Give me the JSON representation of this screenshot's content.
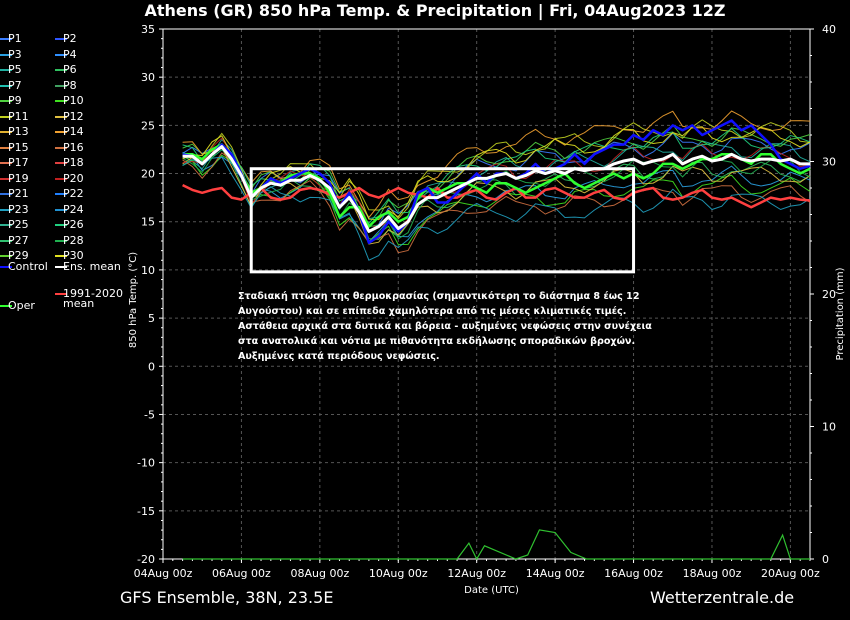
{
  "title": "Athens  (GR)  850 hPa Temp. & Precipitation | Fri, 04Aug2023 12Z",
  "footer": {
    "left": "GFS Ensemble, 38N, 23.5E",
    "right": "Wetterzentrale.de"
  },
  "annotation": "Σταδιακή πτώση της θερμοκρασίας (σημαντικότερη το διάστημα 8 έως 12 Αυγούστου) και σε επίπεδα χαμηλότερα από τις μέσες κλιματικές τιμές. Αστάθεια αρχικά στα δυτικά και βόρεια - αυξημένες νεφώσεις στην συνέχεια στα ανατολικά και νότια με πιθανότητα εκδήλωσης σποραδικών βροχών. Αυξημένες κατά περιόδους νεφώσεις.",
  "legend": [
    {
      "label": "P1",
      "color": "#3a7dff"
    },
    {
      "label": "P2",
      "color": "#2f57ff"
    },
    {
      "label": "P3",
      "color": "#2aa0e0"
    },
    {
      "label": "P4",
      "color": "#3090ff"
    },
    {
      "label": "P5",
      "color": "#20b0a0"
    },
    {
      "label": "P6",
      "color": "#30c060"
    },
    {
      "label": "P7",
      "color": "#20c0b0"
    },
    {
      "label": "P8",
      "color": "#40a060"
    },
    {
      "label": "P9",
      "color": "#50d040"
    },
    {
      "label": "P10",
      "color": "#40e020"
    },
    {
      "label": "P11",
      "color": "#c0d020"
    },
    {
      "label": "P12",
      "color": "#e0c040"
    },
    {
      "label": "P13",
      "color": "#e0b030"
    },
    {
      "label": "P14",
      "color": "#f0a030"
    },
    {
      "label": "P15",
      "color": "#e08040"
    },
    {
      "label": "P16",
      "color": "#d07040"
    },
    {
      "label": "P17",
      "color": "#e07050"
    },
    {
      "label": "P18",
      "color": "#e04040"
    },
    {
      "label": "P19",
      "color": "#d03030"
    },
    {
      "label": "P20",
      "color": "#c02020"
    },
    {
      "label": "P21",
      "color": "#3070e0"
    },
    {
      "label": "P22",
      "color": "#2080ff"
    },
    {
      "label": "P23",
      "color": "#20a0c0"
    },
    {
      "label": "P24",
      "color": "#2090d0"
    },
    {
      "label": "P25",
      "color": "#30b090"
    },
    {
      "label": "P26",
      "color": "#20d080"
    },
    {
      "label": "P27",
      "color": "#30c070"
    },
    {
      "label": "P28",
      "color": "#20b050"
    },
    {
      "label": "P29",
      "color": "#60d030"
    },
    {
      "label": "P30",
      "color": "#e0e020"
    },
    {
      "label": "Control",
      "color": "#1010ff"
    },
    {
      "label": "Ens. mean",
      "color": "#ffffff"
    },
    {
      "label": "1991-2020 mean",
      "color": "#ff4040"
    },
    {
      "label": "Oper",
      "color": "#30ff30"
    }
  ],
  "chart_data": {
    "type": "line",
    "title": "Athens  (GR)  850 hPa Temp. & Precipitation | Fri, 04Aug2023 12Z",
    "xlabel": "Date (UTC)",
    "ylabel": "850 hPa Temp. (°C)",
    "y2label": "Precipitation (mm)",
    "x_ticks": [
      "04Aug 00z",
      "06Aug 00z",
      "08Aug 00z",
      "10Aug 00z",
      "12Aug 00z",
      "14Aug 00z",
      "16Aug 00z",
      "18Aug 00z",
      "20Aug 00z"
    ],
    "x_range_days": [
      4,
      20.5
    ],
    "ylim": [
      -20,
      35
    ],
    "y_ticks": [
      35,
      30,
      25,
      20,
      15,
      10,
      5,
      0,
      -5,
      -10,
      -15,
      -20
    ],
    "y2lim": [
      0,
      40
    ],
    "y2_ticks": [
      40,
      30,
      20,
      10,
      0
    ],
    "grid": true,
    "series": [
      {
        "name": "Control",
        "color": "#1010ff",
        "width": 2.5,
        "x": [
          4.5,
          4.75,
          5,
          5.25,
          5.5,
          5.75,
          6,
          6.25,
          6.5,
          6.75,
          7,
          7.25,
          7.5,
          7.75,
          8,
          8.25,
          8.5,
          8.75,
          9,
          9.25,
          9.5,
          9.75,
          10,
          10.25,
          10.5,
          10.75,
          11,
          11.25,
          11.5,
          11.75,
          12,
          12.25,
          12.5,
          12.75,
          13,
          13.25,
          13.5,
          13.75,
          14,
          14.25,
          14.5,
          14.75,
          15,
          15.25,
          15.5,
          15.75,
          16,
          16.25,
          16.5,
          16.75,
          17,
          17.25,
          17.5,
          17.75,
          18,
          18.25,
          18.5,
          18.75,
          19,
          19.25,
          19.5,
          19.75,
          20,
          20.25,
          20.5
        ],
        "y": [
          22,
          21.8,
          21,
          22,
          23,
          22,
          20,
          17.5,
          18.5,
          19.5,
          19,
          19.5,
          20,
          20.5,
          20,
          19,
          16.5,
          18,
          16,
          12.8,
          13.5,
          15,
          14,
          15,
          18,
          18.5,
          17,
          17,
          18,
          19,
          20,
          19,
          20,
          20,
          19.5,
          20,
          21,
          20,
          20.5,
          21,
          22,
          21,
          22,
          22.5,
          23,
          23,
          24,
          23.5,
          24.5,
          24,
          25,
          24.5,
          25,
          24,
          24.5,
          25,
          25.5,
          24.5,
          25,
          24,
          23,
          21.5,
          21,
          20.5,
          20.8
        ]
      },
      {
        "name": "Ens. mean",
        "color": "#ffffff",
        "width": 3,
        "x": [
          4.5,
          4.75,
          5,
          5.25,
          5.5,
          5.75,
          6,
          6.25,
          6.5,
          6.75,
          7,
          7.25,
          7.5,
          7.75,
          8,
          8.25,
          8.5,
          8.75,
          9,
          9.25,
          9.5,
          9.75,
          10,
          10.25,
          10.5,
          10.75,
          11,
          11.25,
          11.5,
          11.75,
          12,
          12.25,
          12.5,
          12.75,
          13,
          13.25,
          13.5,
          13.75,
          14,
          14.25,
          14.5,
          14.75,
          15,
          15.25,
          15.5,
          15.75,
          16,
          16.25,
          16.5,
          16.75,
          17,
          17.25,
          17.5,
          17.75,
          18,
          18.25,
          18.5,
          18.75,
          19,
          19.25,
          19.5,
          19.75,
          20,
          20.25,
          20.5
        ],
        "y": [
          21.8,
          21.8,
          21,
          22,
          22.8,
          21.5,
          19.8,
          17.5,
          18.5,
          19,
          18.8,
          19.3,
          19.3,
          19.8,
          19.3,
          18.5,
          16.5,
          17.5,
          16,
          14,
          14.5,
          15.5,
          14.3,
          15,
          16.8,
          17.5,
          17.5,
          18,
          18.5,
          19,
          19.5,
          19.5,
          19.8,
          20,
          19.5,
          19.8,
          20.3,
          20,
          20.3,
          20,
          20.5,
          20.3,
          20.5,
          20.5,
          21,
          21.3,
          21.5,
          21,
          21.3,
          21.5,
          22,
          21,
          21.5,
          21.8,
          21.3,
          21.5,
          22,
          21.5,
          21.3,
          21.5,
          21.5,
          21.3,
          21.5,
          21,
          21
        ]
      },
      {
        "name": "1991-2020 mean",
        "color": "#ff4040",
        "width": 2.5,
        "x": [
          4.5,
          4.75,
          5,
          5.25,
          5.5,
          5.75,
          6,
          6.25,
          6.5,
          6.75,
          7,
          7.25,
          7.5,
          7.75,
          8,
          8.25,
          8.5,
          8.75,
          9,
          9.25,
          9.5,
          9.75,
          10,
          10.25,
          10.5,
          10.75,
          11,
          11.25,
          11.5,
          11.75,
          12,
          12.25,
          12.5,
          12.75,
          13,
          13.25,
          13.5,
          13.75,
          14,
          14.25,
          14.5,
          14.75,
          15,
          15.25,
          15.5,
          15.75,
          16,
          16.25,
          16.5,
          16.75,
          17,
          17.25,
          17.5,
          17.75,
          18,
          18.25,
          18.5,
          18.75,
          19,
          19.25,
          19.5,
          19.75,
          20,
          20.25,
          20.5
        ],
        "y": [
          18.8,
          18.3,
          18,
          18.3,
          18.5,
          17.5,
          17.3,
          18,
          18.5,
          17.5,
          17.3,
          17.5,
          18.3,
          18.5,
          18.3,
          17.8,
          17.5,
          18,
          18.5,
          17.8,
          17.5,
          18,
          18.5,
          18,
          17.8,
          17.5,
          18.5,
          17.5,
          17.5,
          18,
          18.3,
          17.5,
          17.3,
          18,
          18.5,
          17.5,
          17.5,
          18.3,
          18.5,
          18,
          17.5,
          17.5,
          18,
          18.3,
          17.5,
          17.3,
          18,
          18.3,
          18.5,
          17.5,
          17.3,
          17.5,
          18,
          18.3,
          17.5,
          17.3,
          17.5,
          17,
          16.5,
          17,
          17.5,
          17.3,
          17.5,
          17.3,
          17.2
        ]
      },
      {
        "name": "Oper",
        "color": "#30ff30",
        "width": 2.5,
        "x": [
          4.5,
          4.75,
          5,
          5.25,
          5.5,
          5.75,
          6,
          6.25,
          6.5,
          6.75,
          7,
          7.25,
          7.5,
          7.75,
          8,
          8.25,
          8.5,
          8.75,
          9,
          9.25,
          9.5,
          9.75,
          10,
          10.25,
          10.5,
          10.75,
          11,
          11.25,
          11.5,
          11.75,
          12,
          12.25,
          12.5,
          12.75,
          13,
          13.25,
          13.5,
          13.75,
          14,
          14.25,
          14.5,
          14.75,
          15,
          15.25,
          15.5,
          15.75,
          16,
          16.25,
          16.5,
          16.75,
          17,
          17.25,
          17.5,
          17.75,
          18,
          18.25,
          18.5,
          18.75,
          19,
          19.25,
          19.5,
          19.75,
          20,
          20.25,
          20.5
        ],
        "y": [
          22,
          22,
          21.5,
          22.5,
          23,
          22,
          20,
          18,
          18.5,
          19.5,
          19,
          19.8,
          20,
          20,
          19.5,
          18,
          15.5,
          16.5,
          16.5,
          14.5,
          15.5,
          16,
          15,
          15.5,
          17.5,
          18.5,
          18,
          18.5,
          19,
          19,
          18.5,
          18,
          19,
          19,
          18.5,
          18,
          18.5,
          19,
          19.5,
          20,
          19,
          18.5,
          19,
          19.5,
          20,
          19.5,
          20,
          19.5,
          20,
          21,
          21,
          20.5,
          21,
          21.5,
          21.5,
          22,
          22,
          21.5,
          21,
          22,
          22,
          21,
          20.5,
          20,
          20.5
        ]
      }
    ],
    "ensemble_members": [
      {
        "name": "P1",
        "color": "#3a7dff",
        "y_offset": 1.2
      },
      {
        "name": "P3",
        "color": "#2aa0e0",
        "y_offset": -1.6
      },
      {
        "name": "P5",
        "color": "#20b0a0",
        "y_offset": 0.8
      },
      {
        "name": "P6",
        "color": "#30c060",
        "y_offset": -0.9
      },
      {
        "name": "P9",
        "color": "#50d040",
        "y_offset": 1.8
      },
      {
        "name": "P10",
        "color": "#40e020",
        "y_offset": -2.2
      },
      {
        "name": "P11",
        "color": "#c0d020",
        "y_offset": 2.4
      },
      {
        "name": "P12",
        "color": "#e0c040",
        "y_offset": -1.2
      },
      {
        "name": "P14",
        "color": "#f0a030",
        "y_offset": 3.0
      },
      {
        "name": "P16",
        "color": "#d07040",
        "y_offset": -2.8
      },
      {
        "name": "P20",
        "color": "#c02020",
        "y_offset": 0.4
      },
      {
        "name": "P23",
        "color": "#20a0c0",
        "y_offset": -3.4
      },
      {
        "name": "P26",
        "color": "#20d080",
        "y_offset": 1.5
      },
      {
        "name": "P28",
        "color": "#20b050",
        "y_offset": -0.5
      },
      {
        "name": "P30",
        "color": "#e0e020",
        "y_offset": 2.0
      }
    ],
    "precipitation": {
      "color": "#30c030",
      "x": [
        4.5,
        11.5,
        11.8,
        12.0,
        12.2,
        13.0,
        13.3,
        13.6,
        14.0,
        14.4,
        14.8,
        18.5,
        19.5,
        19.8,
        20.0,
        20.5
      ],
      "y": [
        0,
        0,
        1.2,
        0,
        1.0,
        0,
        0.3,
        2.2,
        2.0,
        0.5,
        0,
        0,
        0,
        1.8,
        0,
        0
      ]
    },
    "highlight_box": {
      "x": [
        6.25,
        16.0
      ],
      "y": [
        9.8,
        20.5
      ]
    }
  }
}
